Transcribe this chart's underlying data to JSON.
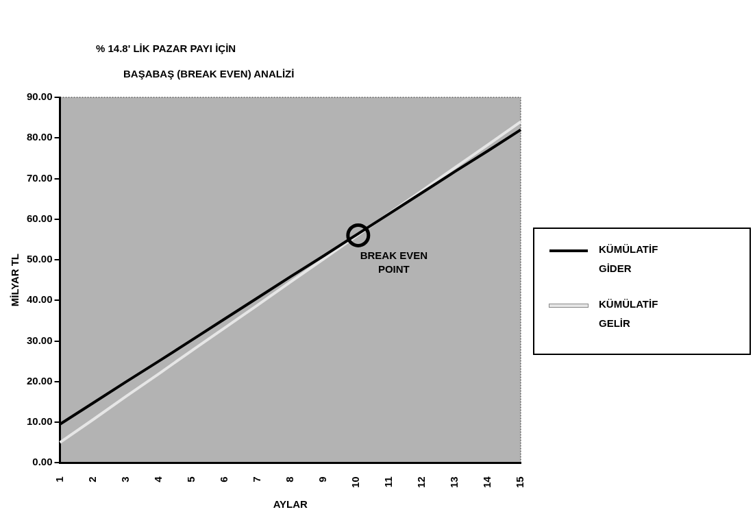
{
  "chart_data": {
    "type": "line",
    "title": "% 14.8' LİK PAZAR PAYI İÇİN",
    "subtitle": "BAŞABAŞ (BREAK EVEN) ANALİZİ",
    "xlabel": "AYLAR",
    "ylabel": "MİLYAR TL",
    "categories": [
      "1",
      "2",
      "3",
      "4",
      "5",
      "6",
      "7",
      "8",
      "9",
      "10",
      "11",
      "12",
      "13",
      "14",
      "15"
    ],
    "series": [
      {
        "name": "KÜMÜLATİF GİDER",
        "color": "#000000",
        "values": [
          9.5,
          14.7,
          19.9,
          25.0,
          30.2,
          35.4,
          40.6,
          45.8,
          50.9,
          56.1,
          61.3,
          66.5,
          71.7,
          76.8,
          82.0
        ]
      },
      {
        "name": "KÜMÜLATİF GELİR",
        "color": "#e6e6e6",
        "values": [
          5.0,
          10.6,
          16.3,
          21.9,
          27.6,
          33.2,
          38.8,
          44.5,
          50.1,
          55.8,
          61.4,
          67.0,
          72.7,
          78.3,
          84.0
        ]
      }
    ],
    "ylim": [
      0,
      90
    ],
    "yticks": [
      {
        "value": 0,
        "label": "0.00"
      },
      {
        "value": 10,
        "label": "10.00"
      },
      {
        "value": 20,
        "label": "20.00"
      },
      {
        "value": 30,
        "label": "30.00"
      },
      {
        "value": 40,
        "label": "40.00"
      },
      {
        "value": 50,
        "label": "50.00"
      },
      {
        "value": 60,
        "label": "60.00"
      },
      {
        "value": 70,
        "label": "70.00"
      },
      {
        "value": 80,
        "label": "80.00"
      },
      {
        "value": 90,
        "label": "90.00"
      }
    ],
    "annotations": [
      {
        "text": "BREAK EVEN POINT",
        "x": "10",
        "y": 56
      }
    ],
    "grid": false,
    "legend": "right",
    "marker": "none",
    "line_style": "solid"
  }
}
